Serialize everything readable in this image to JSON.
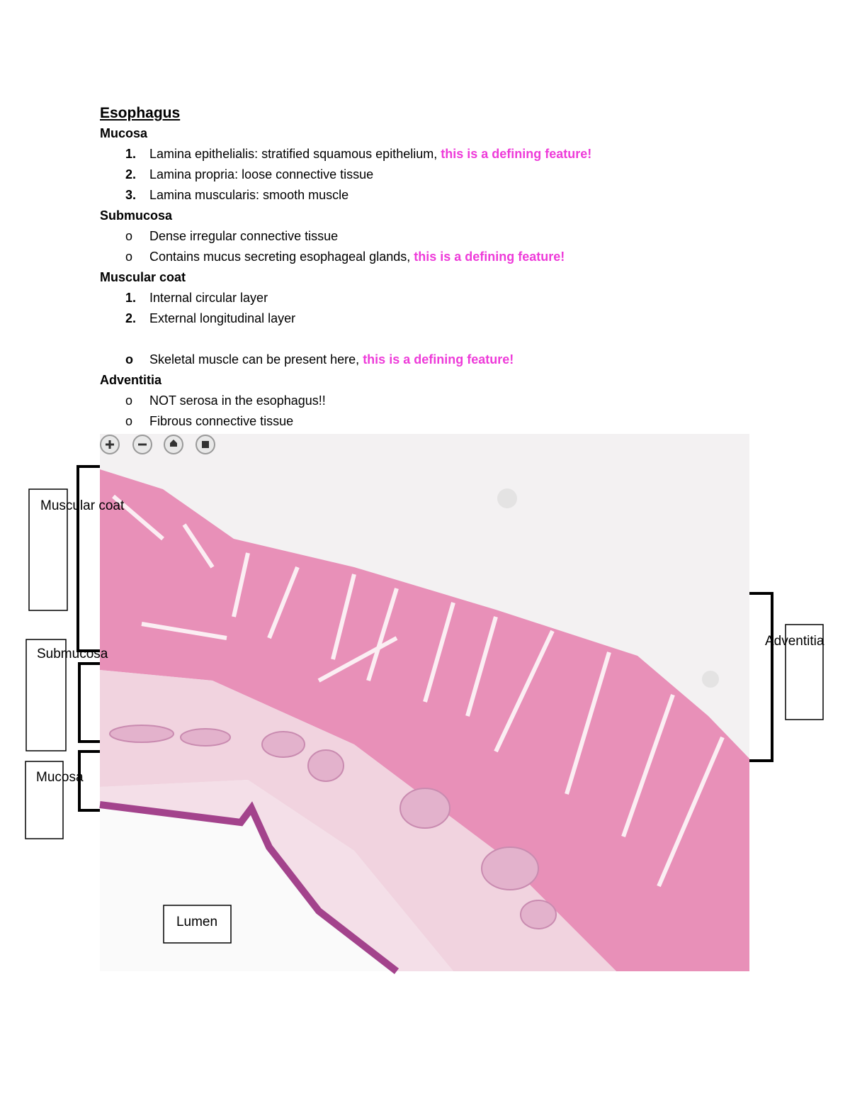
{
  "title": "Esophagus",
  "sections": [
    {
      "heading": "Mucosa",
      "items": [
        {
          "marker": "1.",
          "text": "Lamina epithelialis: stratified squamous epithelium,",
          "highlight": "this is a defining feature!"
        },
        {
          "marker": "2.",
          "text": "Lamina propria: loose connective tissue"
        },
        {
          "marker": "3.",
          "text": "Lamina muscularis: smooth muscle"
        }
      ]
    },
    {
      "heading": "Submucosa",
      "items": [
        {
          "marker": "o",
          "text": "Dense irregular connective tissue"
        },
        {
          "marker": "o",
          "text": "Contains mucus secreting esophageal glands,",
          "highlight": "this is a defining feature!"
        }
      ]
    },
    {
      "heading": "Muscular coat",
      "items": [
        {
          "marker": "1.",
          "text": "Internal circular layer"
        },
        {
          "marker": "2.",
          "text": "External longitudinal layer"
        },
        {
          "marker": "o",
          "text": "Skeletal muscle can be present here,",
          "highlight": "this is a defining feature!"
        }
      ]
    },
    {
      "heading": "Adventitia",
      "items": [
        {
          "marker": "o",
          "text": "NOT serosa in the esophagus!!"
        },
        {
          "marker": "o",
          "text": "Fibrous connective tissue"
        }
      ]
    }
  ],
  "figure": {
    "labels": [
      "Muscular coat",
      "Submucosa",
      "Mucosa",
      "Adventitia",
      "Lumen"
    ]
  }
}
